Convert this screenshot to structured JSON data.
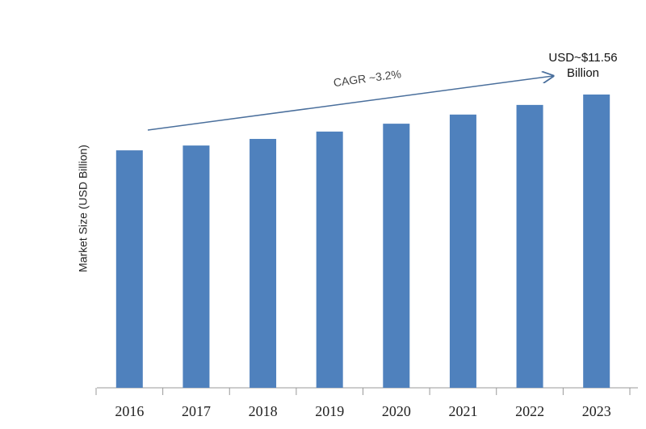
{
  "chart_data": {
    "type": "bar",
    "y_label": "Market Size (USD Billion)",
    "annotations": [
      "CAGR ~3.2%",
      "USD~$11.56 Billion"
    ],
    "categories": [
      "2016",
      "2017",
      "2018",
      "2019",
      "2020",
      "2021",
      "2022",
      "2023"
    ],
    "values": [
      9.36,
      9.55,
      9.81,
      10.1,
      10.41,
      10.77,
      11.15,
      11.56
    ],
    "color": "#4f81bd"
  }
}
